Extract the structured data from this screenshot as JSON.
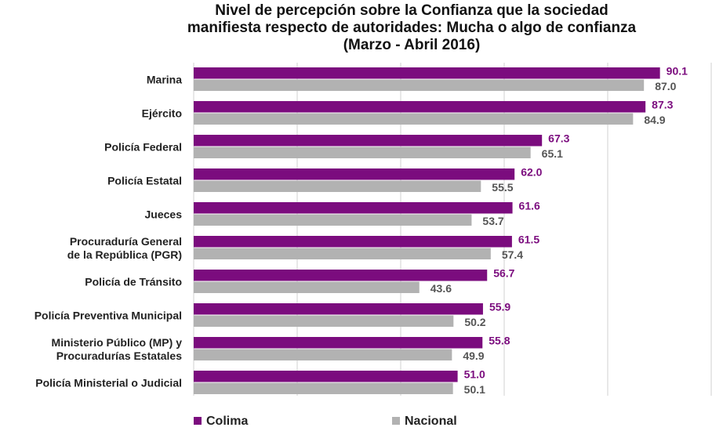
{
  "chart_data": {
    "type": "hbar",
    "title": [
      "Nivel de percepción sobre la Confianza que la sociedad",
      "manifiesta respecto de autoridades: Mucha o algo de confianza",
      "(Marzo - Abril 2016)"
    ],
    "categories": [
      "Marina",
      "Ejército",
      "Policía Federal",
      "Policía Estatal",
      "Jueces",
      "Procuraduría General\nde la República (PGR)",
      "Policía de Tránsito",
      "Policía Preventiva Municipal",
      "Ministerio Público (MP) y\nProcuradurías Estatales",
      "Policía Ministerial o Judicial"
    ],
    "series": [
      {
        "name": "Colima",
        "color": "#7b0c7e",
        "values": [
          90.1,
          87.3,
          67.3,
          62.0,
          61.6,
          61.5,
          56.7,
          55.9,
          55.8,
          51.0
        ],
        "value_labels": [
          "90.1",
          "87.3",
          "67.3",
          "62.0",
          "61.6",
          "61.5",
          "56.7",
          "55.9",
          "55.8",
          "51.0"
        ]
      },
      {
        "name": "Nacional",
        "color": "#b2b2b2",
        "values": [
          87.0,
          84.9,
          65.1,
          55.5,
          53.7,
          57.4,
          43.6,
          50.2,
          49.9,
          50.1
        ],
        "value_labels": [
          "87.0",
          "84.9",
          "65.1",
          "55.5",
          "53.7",
          "57.4",
          "43.6",
          "50.2",
          "49.9",
          "50.1"
        ]
      }
    ],
    "xlim": [
      0,
      100
    ],
    "xticks": [
      0,
      20,
      40,
      60,
      80,
      100
    ],
    "grid": true
  }
}
